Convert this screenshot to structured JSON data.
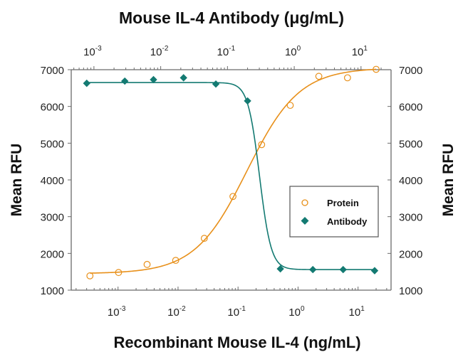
{
  "chart_data": {
    "type": "scatter",
    "title": "Mouse IL-4 Antibody (μg/mL)",
    "xlabel": "Recombinant Mouse IL-4 (ng/mL)",
    "ylabel": "Mean RFU",
    "ylabel_right": "Mean RFU",
    "ylim": [
      1000,
      7000
    ],
    "yticks": [
      "1000",
      "2000",
      "3000",
      "4000",
      "5000",
      "6000",
      "7000"
    ],
    "x_bottom": {
      "scale": "log",
      "xlim_log10": [
        -3.78,
        1.55
      ],
      "ticks": [
        {
          "base": "10",
          "exp": "-3"
        },
        {
          "base": "10",
          "exp": "-2"
        },
        {
          "base": "10",
          "exp": "-1"
        },
        {
          "base": "10",
          "exp": "0"
        },
        {
          "base": "10",
          "exp": "1"
        }
      ]
    },
    "x_top": {
      "scale": "log",
      "xlim_log10": [
        -3.34,
        1.45
      ],
      "ticks": [
        {
          "base": "10",
          "exp": "-3"
        },
        {
          "base": "10",
          "exp": "-2"
        },
        {
          "base": "10",
          "exp": "-1"
        },
        {
          "base": "10",
          "exp": "0"
        },
        {
          "base": "10",
          "exp": "1"
        }
      ]
    },
    "grid": false,
    "legend": {
      "position": "center-right",
      "entries": [
        "Protein",
        "Antibody"
      ]
    },
    "series": [
      {
        "name": "Protein",
        "axis": "bottom",
        "marker": "open-circle",
        "color": "#e8901a",
        "x": [
          0.00034,
          0.00102,
          0.00305,
          0.00914,
          0.0274,
          0.0823,
          0.247,
          0.741,
          2.22,
          6.67,
          20
        ],
        "y": [
          1390,
          1480,
          1700,
          1810,
          2410,
          3550,
          4960,
          6030,
          6820,
          6780,
          7010
        ],
        "fit": {
          "bottom": 1450,
          "top": 7050,
          "log_ec50": -0.85,
          "hill": 1.0
        }
      },
      {
        "name": "Antibody",
        "axis": "top",
        "marker": "filled-diamond",
        "color": "#137a72",
        "x": [
          0.00078,
          0.0029,
          0.0078,
          0.022,
          0.067,
          0.2,
          0.62,
          1.9,
          5.4,
          16
        ],
        "y": [
          6630,
          6690,
          6730,
          6780,
          6610,
          6150,
          1580,
          1560,
          1560,
          1530
        ],
        "fit": {
          "bottom": 1560,
          "top": 6650,
          "log_ec50": -0.52,
          "hill": -5.0
        }
      }
    ]
  }
}
